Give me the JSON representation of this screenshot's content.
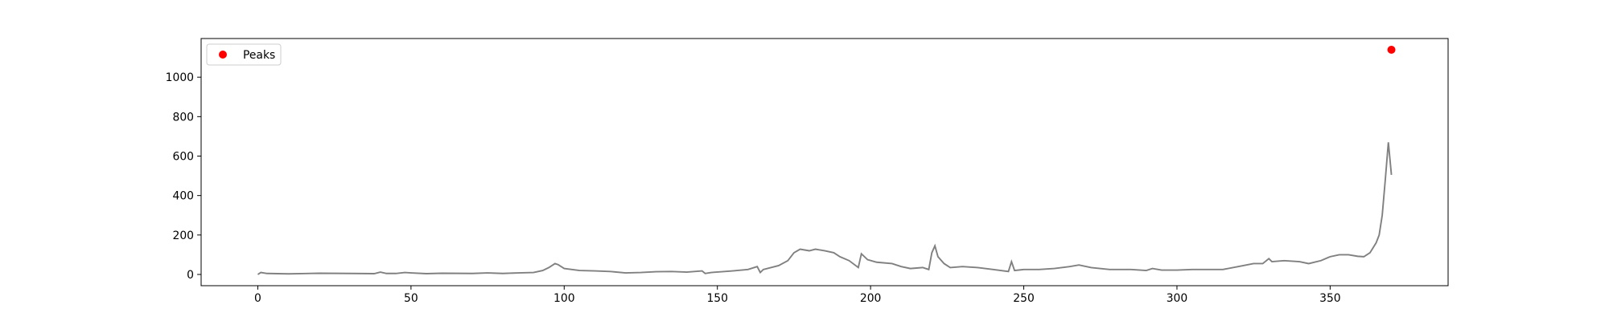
{
  "chart_data": {
    "type": "line",
    "x": [
      0,
      1,
      3,
      10,
      20,
      30,
      38,
      40,
      42,
      45,
      48,
      50,
      55,
      60,
      70,
      75,
      80,
      85,
      90,
      93,
      95,
      97,
      98,
      100,
      105,
      110,
      115,
      120,
      125,
      130,
      135,
      140,
      145,
      146,
      148,
      155,
      160,
      163,
      164,
      165,
      170,
      173,
      175,
      177,
      180,
      182,
      185,
      188,
      190,
      193,
      196,
      197,
      199,
      202,
      207,
      210,
      213,
      217,
      219,
      220,
      221,
      222,
      224,
      226,
      230,
      235,
      240,
      245,
      246,
      247,
      250,
      255,
      260,
      265,
      268,
      272,
      278,
      285,
      290,
      292,
      295,
      300,
      305,
      315,
      320,
      325,
      328,
      330,
      331,
      335,
      340,
      343,
      347,
      350,
      353,
      356,
      359,
      361,
      363,
      365,
      366,
      367,
      368,
      369,
      370
    ],
    "series": [
      {
        "color": "#808080",
        "values": [
          0,
          10,
          5,
          3,
          6,
          5,
          4,
          12,
          5,
          5,
          10,
          8,
          4,
          6,
          5,
          8,
          5,
          8,
          10,
          20,
          35,
          55,
          50,
          30,
          20,
          18,
          15,
          8,
          10,
          14,
          15,
          12,
          18,
          5,
          10,
          18,
          25,
          40,
          10,
          25,
          45,
          70,
          110,
          128,
          120,
          128,
          120,
          110,
          90,
          70,
          35,
          105,
          75,
          62,
          55,
          40,
          30,
          35,
          25,
          110,
          145,
          90,
          55,
          35,
          40,
          35,
          25,
          15,
          65,
          20,
          25,
          25,
          30,
          40,
          48,
          35,
          25,
          25,
          20,
          30,
          22,
          22,
          25,
          25,
          40,
          55,
          55,
          80,
          65,
          70,
          65,
          55,
          70,
          90,
          100,
          100,
          92,
          90,
          110,
          160,
          200,
          300,
          480,
          670,
          505
        ]
      }
    ],
    "scatter": {
      "name": "Peaks",
      "color": "#ff0000",
      "x": [
        370
      ],
      "values": [
        1139
      ]
    },
    "legend": "upper left",
    "xlim": [
      -18.5,
      388.5
    ],
    "ylim": [
      -57,
      1196
    ],
    "xticks": [
      0,
      50,
      100,
      150,
      200,
      250,
      300,
      350
    ],
    "yticks": [
      0,
      200,
      400,
      600,
      800,
      1000
    ]
  }
}
